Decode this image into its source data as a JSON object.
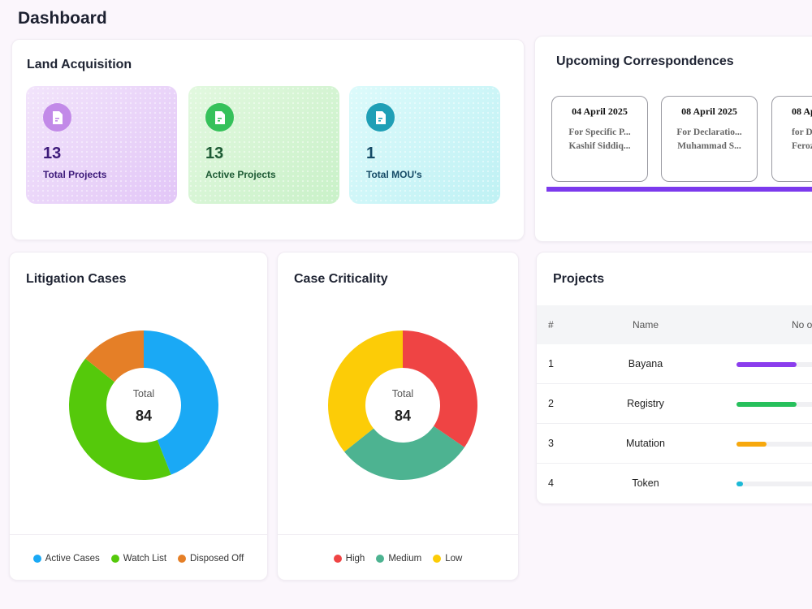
{
  "page": {
    "title": "Dashboard"
  },
  "land_acquisition": {
    "title": "Land Acquisition",
    "stats": [
      {
        "value": "13",
        "label": "Total Projects",
        "icon": "document-icon",
        "color": "#c28ae8"
      },
      {
        "value": "13",
        "label": "Active Projects",
        "icon": "document-icon",
        "color": "#35c15a"
      },
      {
        "value": "1",
        "label": "Total MOU's",
        "icon": "document-icon",
        "color": "#1f9fb6"
      }
    ]
  },
  "correspondences": {
    "title": "Upcoming Correspondences",
    "items": [
      {
        "date": "04 April 2025",
        "line1": "For Specific P...",
        "line2": "Kashif Siddiq..."
      },
      {
        "date": "08 April 2025",
        "line1": "For Declaratio...",
        "line2": "Muhammad S..."
      },
      {
        "date": "08 Ap",
        "line1": "for De",
        "line2": "Ferozp"
      }
    ],
    "accent": "#7c3aed"
  },
  "litigation": {
    "title": "Litigation Cases",
    "center_label": "Total",
    "center_value": "84",
    "legend": [
      {
        "label": "Active Cases",
        "color": "#1aa9f5"
      },
      {
        "label": "Watch List",
        "color": "#55c90b"
      },
      {
        "label": "Disposed Off",
        "color": "#e57f27"
      }
    ]
  },
  "criticality": {
    "title": "Case Criticality",
    "center_label": "Total",
    "center_value": "84",
    "legend": [
      {
        "label": "High",
        "color": "#ef4444"
      },
      {
        "label": "Medium",
        "color": "#4db391"
      },
      {
        "label": "Low",
        "color": "#fccc07"
      }
    ]
  },
  "chart_data": [
    {
      "type": "pie",
      "title": "Litigation Cases",
      "categories": [
        "Active Cases",
        "Watch List",
        "Disposed Off"
      ],
      "values": [
        37,
        35,
        12
      ],
      "colors": [
        "#1aa9f5",
        "#55c90b",
        "#e57f27"
      ],
      "total": 84
    },
    {
      "type": "pie",
      "title": "Case Criticality",
      "categories": [
        "High",
        "Medium",
        "Low"
      ],
      "values": [
        29,
        25,
        30
      ],
      "colors": [
        "#ef4444",
        "#4db391",
        "#fccc07"
      ],
      "total": 84
    }
  ],
  "projects": {
    "title": "Projects",
    "headers": {
      "num": "#",
      "name": "Name",
      "count": "No o"
    },
    "rows": [
      {
        "num": "1",
        "name": "Bayana",
        "fraction": 0.62,
        "color": "#8b3ded"
      },
      {
        "num": "2",
        "name": "Registry",
        "fraction": 0.62,
        "color": "#27c05c"
      },
      {
        "num": "3",
        "name": "Mutation",
        "fraction": 0.31,
        "color": "#f7a80d"
      },
      {
        "num": "4",
        "name": "Token",
        "fraction": 0.07,
        "color": "#1cb9d6"
      }
    ]
  }
}
